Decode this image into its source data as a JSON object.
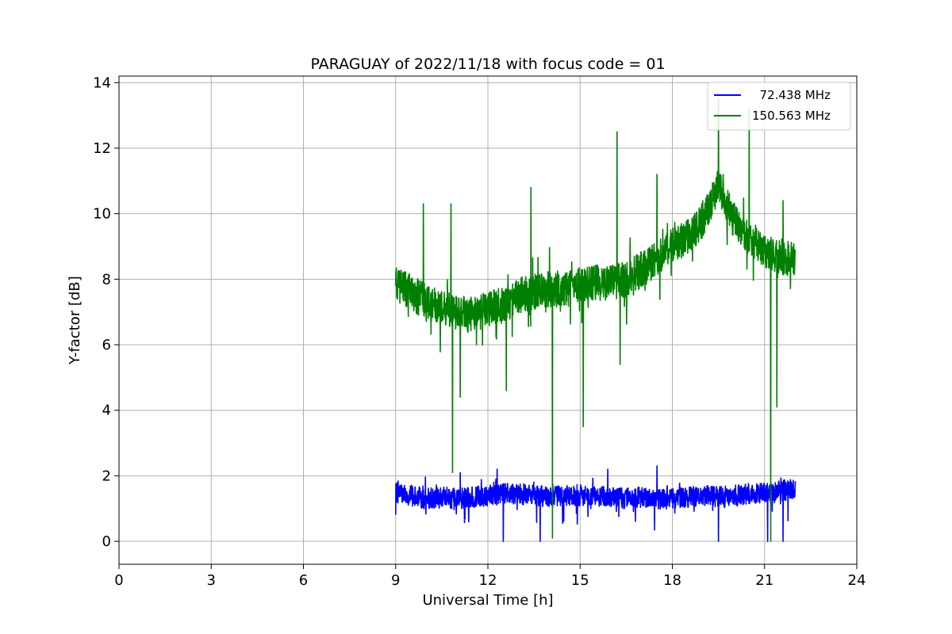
{
  "chart_data": {
    "type": "line",
    "title": "PARAGUAY of 2022/11/18 with focus code = 01",
    "xlabel": "Universal Time [h]",
    "ylabel": "Y-factor [dB]",
    "xlim": [
      0,
      24
    ],
    "ylim": [
      -0.7,
      14.2
    ],
    "xticks": [
      0,
      3,
      6,
      9,
      12,
      15,
      18,
      21,
      24
    ],
    "yticks": [
      0,
      2,
      4,
      6,
      8,
      10,
      12,
      14
    ],
    "xtick_labels": [
      "0",
      "3",
      "6",
      "9",
      "12",
      "15",
      "18",
      "21",
      "24"
    ],
    "ytick_labels": [
      "0",
      "2",
      "4",
      "6",
      "8",
      "10",
      "12",
      "14"
    ],
    "grid": true,
    "legend_position": "top-right",
    "series": [
      {
        "name": "  72.438 MHz",
        "color": "#0000ff",
        "x": [
          9.0,
          9.5,
          10.0,
          10.5,
          11.0,
          11.5,
          12.0,
          12.5,
          13.0,
          13.5,
          14.0,
          14.5,
          15.0,
          15.5,
          16.0,
          16.5,
          17.0,
          17.5,
          18.0,
          18.5,
          19.0,
          19.5,
          20.0,
          20.5,
          21.0,
          21.5,
          22.0
        ],
        "values": [
          1.5,
          1.4,
          1.3,
          1.35,
          1.3,
          1.35,
          1.4,
          1.45,
          1.45,
          1.4,
          1.35,
          1.4,
          1.4,
          1.45,
          1.35,
          1.3,
          1.35,
          1.3,
          1.3,
          1.35,
          1.4,
          1.35,
          1.4,
          1.45,
          1.5,
          1.55,
          1.6
        ],
        "spikes": [
          {
            "x": 11.1,
            "y": 2.1
          },
          {
            "x": 12.3,
            "y": 2.2
          },
          {
            "x": 12.5,
            "y": 0.0
          },
          {
            "x": 13.7,
            "y": 0.0
          },
          {
            "x": 15.9,
            "y": 2.2
          },
          {
            "x": 17.5,
            "y": 2.3
          },
          {
            "x": 19.5,
            "y": 0.0
          },
          {
            "x": 21.1,
            "y": 0.0
          },
          {
            "x": 21.6,
            "y": 0.0
          }
        ]
      },
      {
        "name": "150.563 MHz",
        "color": "#008000",
        "x": [
          9.0,
          9.5,
          10.0,
          10.5,
          11.0,
          11.5,
          12.0,
          12.5,
          13.0,
          13.5,
          14.0,
          14.5,
          15.0,
          15.5,
          16.0,
          16.5,
          17.0,
          17.5,
          18.0,
          18.5,
          19.0,
          19.5,
          20.0,
          20.5,
          21.0,
          21.5,
          22.0
        ],
        "values": [
          7.9,
          7.6,
          7.3,
          7.1,
          7.0,
          6.9,
          7.1,
          7.2,
          7.5,
          7.6,
          7.7,
          7.7,
          7.8,
          7.9,
          7.9,
          8.0,
          8.3,
          8.6,
          9.0,
          9.3,
          9.8,
          10.9,
          9.8,
          9.3,
          8.9,
          8.7,
          8.6
        ],
        "spikes": [
          {
            "x": 9.9,
            "y": 10.3
          },
          {
            "x": 10.8,
            "y": 10.3
          },
          {
            "x": 10.85,
            "y": 2.1
          },
          {
            "x": 11.1,
            "y": 4.4
          },
          {
            "x": 12.6,
            "y": 4.6
          },
          {
            "x": 13.4,
            "y": 10.8
          },
          {
            "x": 14.1,
            "y": 0.1
          },
          {
            "x": 15.1,
            "y": 3.5
          },
          {
            "x": 16.2,
            "y": 12.5
          },
          {
            "x": 16.3,
            "y": 5.4
          },
          {
            "x": 17.5,
            "y": 11.2
          },
          {
            "x": 19.5,
            "y": 13.5
          },
          {
            "x": 20.5,
            "y": 13.2
          },
          {
            "x": 21.2,
            "y": 0.0
          },
          {
            "x": 21.4,
            "y": 4.1
          },
          {
            "x": 21.6,
            "y": 10.4
          }
        ]
      }
    ]
  }
}
